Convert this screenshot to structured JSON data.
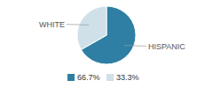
{
  "chart_data": {
    "type": "pie",
    "categories": [
      "HISPANIC",
      "WHITE"
    ],
    "values": [
      66.7,
      33.3
    ],
    "colors": [
      "#2e7fa3",
      "#cfe0e8"
    ],
    "value_labels": [
      "66.7%",
      "33.3%"
    ],
    "legend": "bottom"
  }
}
